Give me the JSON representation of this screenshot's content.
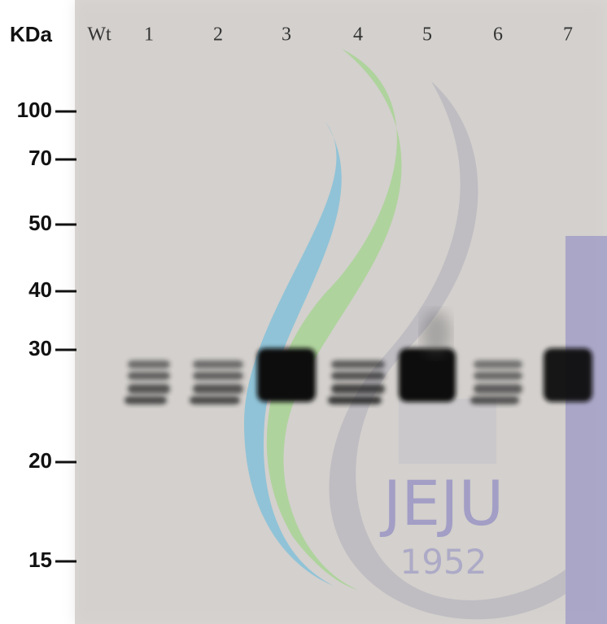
{
  "unit_label": "KDa",
  "lanes": [
    "Wt",
    "1",
    "2",
    "3",
    "4",
    "5",
    "6",
    "7"
  ],
  "markers": [
    "100",
    "70",
    "50",
    "40",
    "30",
    "20",
    "15"
  ],
  "watermark": {
    "name": "JEJU",
    "year": "1952"
  }
}
